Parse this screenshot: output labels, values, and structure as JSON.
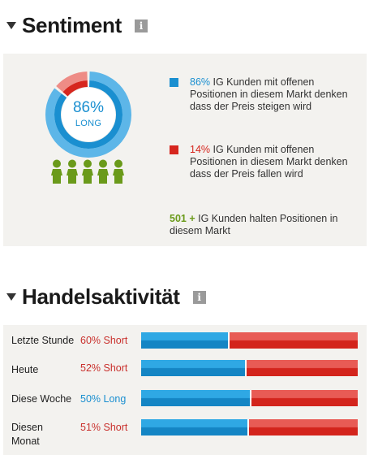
{
  "sentiment": {
    "title": "Sentiment",
    "info_icon": "i",
    "donut": {
      "long_fraction": 0.86,
      "short_fraction": 0.14,
      "percent_label": "86%",
      "direction_label": "LONG"
    },
    "legend": {
      "long_pct": "86%",
      "long_text": " IG Kunden mit offenen Positionen in diesem Markt denken dass der Preis steigen wird",
      "short_pct": "14%",
      "short_text": " IG Kunden mit offenen Positionen in diesem Markt denken dass der Preis fallen wird",
      "holders_count": "501 +",
      "holders_text": " IG Kunden halten Positionen in diesem Markt"
    },
    "colors": {
      "long": "#1a8fd0",
      "short": "#d6261e",
      "people": "#6a9a1a"
    },
    "people_icon": "person-icon",
    "people_count": 5
  },
  "activity": {
    "title": "Handelsaktivität",
    "info_icon": "i",
    "rows": [
      {
        "label": "Letzte Stunde",
        "value": "60% Short",
        "direction": "short",
        "long_fraction": 0.4
      },
      {
        "label": "Heute",
        "value": "52% Short",
        "direction": "short",
        "long_fraction": 0.48
      },
      {
        "label": "Diese Woche",
        "value": "50% Long",
        "direction": "long",
        "long_fraction": 0.5
      },
      {
        "label": "Diesen Monat",
        "value": "51% Short",
        "direction": "short",
        "long_fraction": 0.49
      }
    ]
  }
}
